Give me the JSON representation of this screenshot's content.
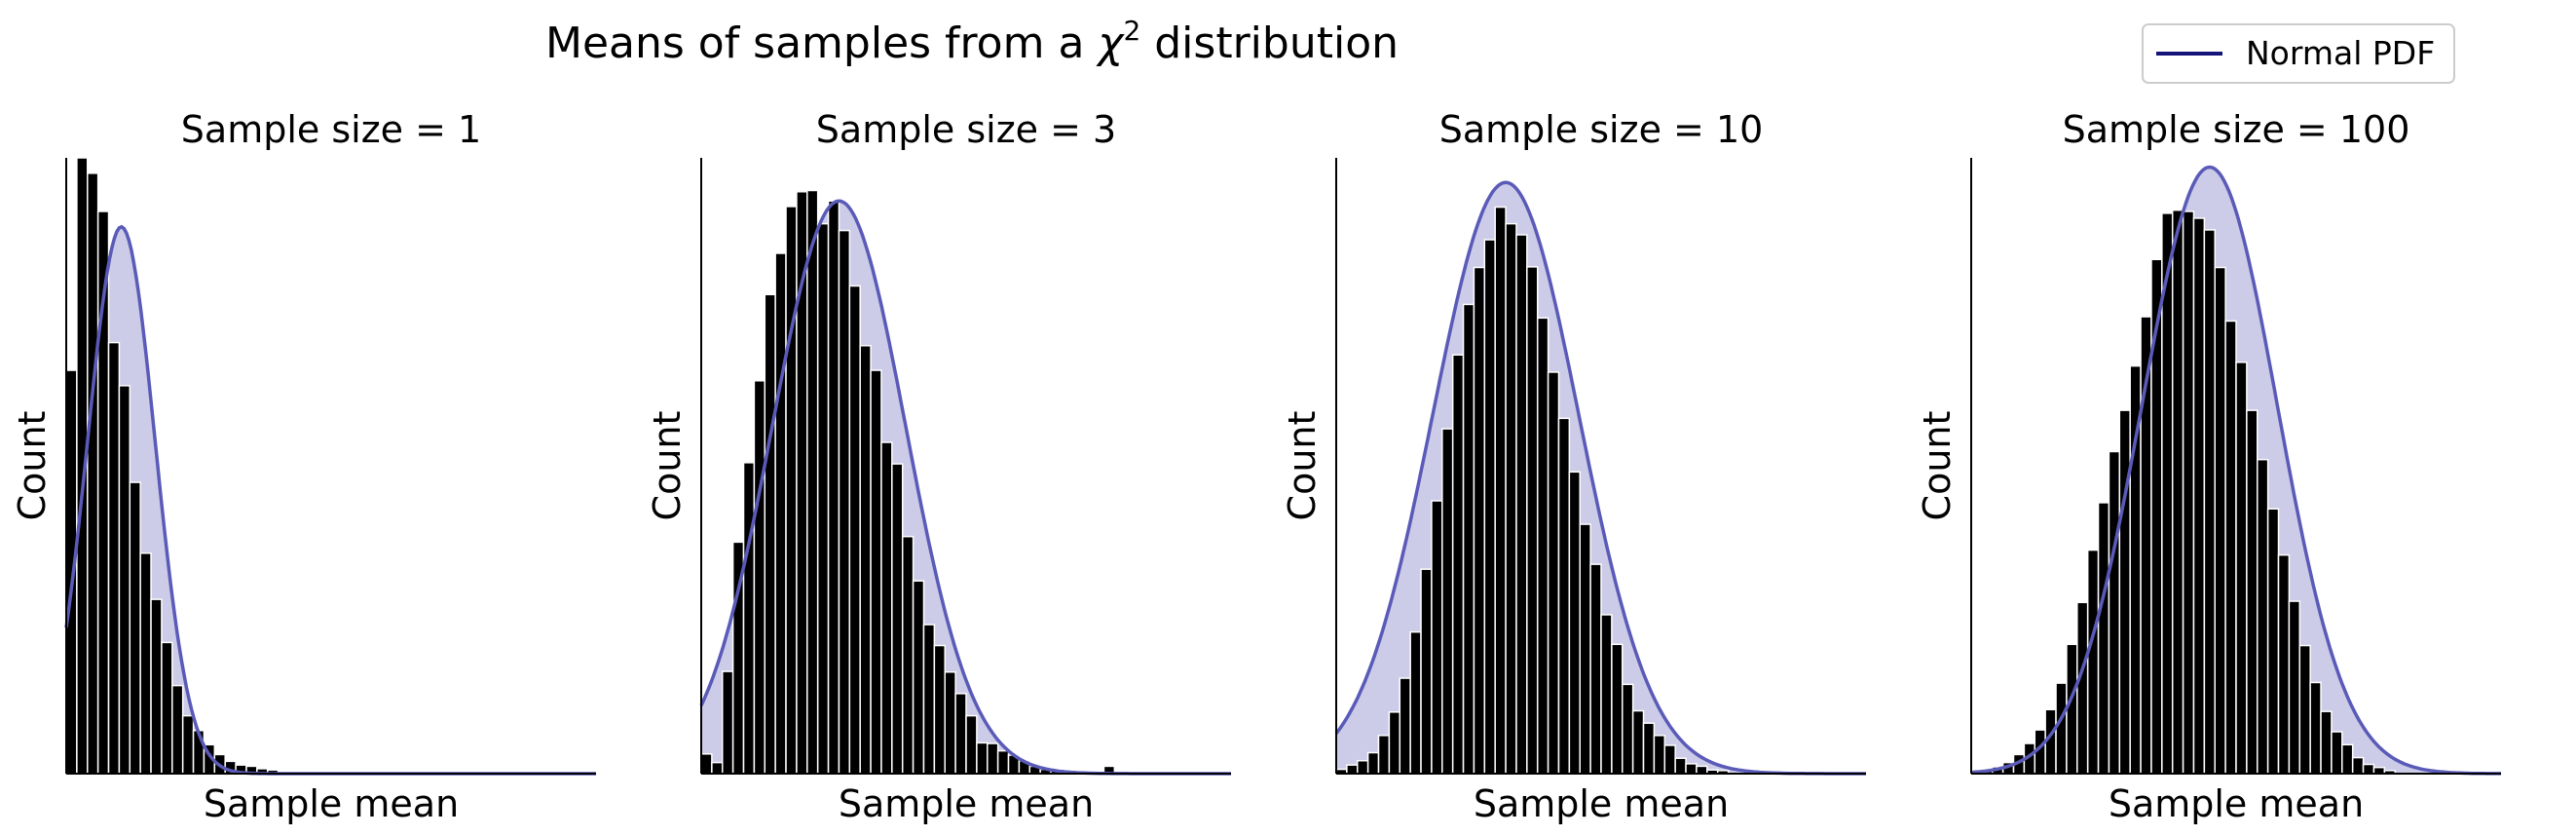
{
  "suptitle_prefix": "Means of samples from a ",
  "suptitle_symbol": "χ",
  "suptitle_sup": "2",
  "suptitle_suffix": " distribution",
  "legend": {
    "label": "Normal PDF",
    "placement": "top-right"
  },
  "colors": {
    "bar": "#000000",
    "bar_edge": "#ffffff",
    "curve": "#5a5ab8",
    "fill": "#cccce8",
    "legend_line": "#14147a",
    "axis": "#000000"
  },
  "chart_data": [
    {
      "type": "bar",
      "title": "Sample size = 1",
      "xlabel": "Sample mean",
      "ylabel": "Count",
      "xlim": [
        0,
        50
      ],
      "ylim": [
        0,
        1
      ],
      "values": [
        0.655,
        1.0,
        0.975,
        0.913,
        0.7,
        0.63,
        0.473,
        0.358,
        0.283,
        0.213,
        0.143,
        0.094,
        0.07,
        0.047,
        0.031,
        0.02,
        0.014,
        0.012,
        0.008,
        0.006,
        0.003,
        0.002,
        0.001,
        0,
        0,
        0,
        0,
        0,
        0,
        0,
        0,
        0,
        0,
        0,
        0,
        0,
        0,
        0,
        0,
        0,
        0,
        0,
        0,
        0,
        0,
        0,
        0,
        0,
        0,
        0
      ],
      "pdf": {
        "mu": 5.2,
        "sigma": 3.2,
        "peak": 0.888
      }
    },
    {
      "type": "bar",
      "title": "Sample size = 3",
      "xlabel": "Sample mean",
      "ylabel": "Count",
      "xlim": [
        0,
        50
      ],
      "ylim": [
        0,
        1
      ],
      "values": [
        0.032,
        0.018,
        0.166,
        0.376,
        0.505,
        0.638,
        0.778,
        0.845,
        0.921,
        0.945,
        0.947,
        0.893,
        0.93,
        0.882,
        0.792,
        0.695,
        0.655,
        0.538,
        0.503,
        0.385,
        0.313,
        0.242,
        0.208,
        0.165,
        0.13,
        0.094,
        0.05,
        0.049,
        0.037,
        0.03,
        0.021,
        0.012,
        0.007,
        0.005,
        0,
        0,
        0,
        0,
        0.012,
        0,
        0,
        0,
        0,
        0,
        0,
        0,
        0,
        0,
        0,
        0
      ],
      "pdf": {
        "mu": 13.0,
        "sigma": 6.3,
        "peak": 0.93
      }
    },
    {
      "type": "bar",
      "title": "Sample size = 10",
      "xlabel": "Sample mean",
      "ylabel": "Count",
      "xlim": [
        0,
        50
      ],
      "ylim": [
        0,
        1
      ],
      "values": [
        0.007,
        0.014,
        0.021,
        0.034,
        0.062,
        0.1,
        0.155,
        0.23,
        0.332,
        0.443,
        0.56,
        0.68,
        0.762,
        0.822,
        0.867,
        0.92,
        0.893,
        0.875,
        0.823,
        0.74,
        0.652,
        0.577,
        0.49,
        0.405,
        0.34,
        0.258,
        0.21,
        0.145,
        0.102,
        0.082,
        0.062,
        0.046,
        0.025,
        0.016,
        0.012,
        0.006,
        0.005,
        0,
        0,
        0,
        0,
        0,
        0,
        0,
        0,
        0,
        0,
        0,
        0,
        0
      ],
      "pdf": {
        "mu": 16.0,
        "sigma": 6.9,
        "peak": 0.96
      }
    },
    {
      "type": "bar",
      "title": "Sample size = 100",
      "xlabel": "Sample mean",
      "ylabel": "Count",
      "xlim": [
        0,
        50
      ],
      "ylim": [
        0,
        1
      ],
      "values": [
        0.002,
        0.005,
        0.011,
        0.018,
        0.031,
        0.049,
        0.071,
        0.104,
        0.147,
        0.21,
        0.278,
        0.363,
        0.44,
        0.523,
        0.59,
        0.662,
        0.742,
        0.835,
        0.91,
        0.915,
        0.913,
        0.902,
        0.883,
        0.822,
        0.735,
        0.668,
        0.59,
        0.51,
        0.43,
        0.355,
        0.28,
        0.208,
        0.148,
        0.101,
        0.068,
        0.047,
        0.026,
        0.015,
        0.01,
        0.005,
        0,
        0,
        0,
        0,
        0,
        0,
        0,
        0,
        0,
        0
      ],
      "pdf": {
        "mu": 22.5,
        "sigma": 6.4,
        "peak": 0.985
      }
    }
  ]
}
